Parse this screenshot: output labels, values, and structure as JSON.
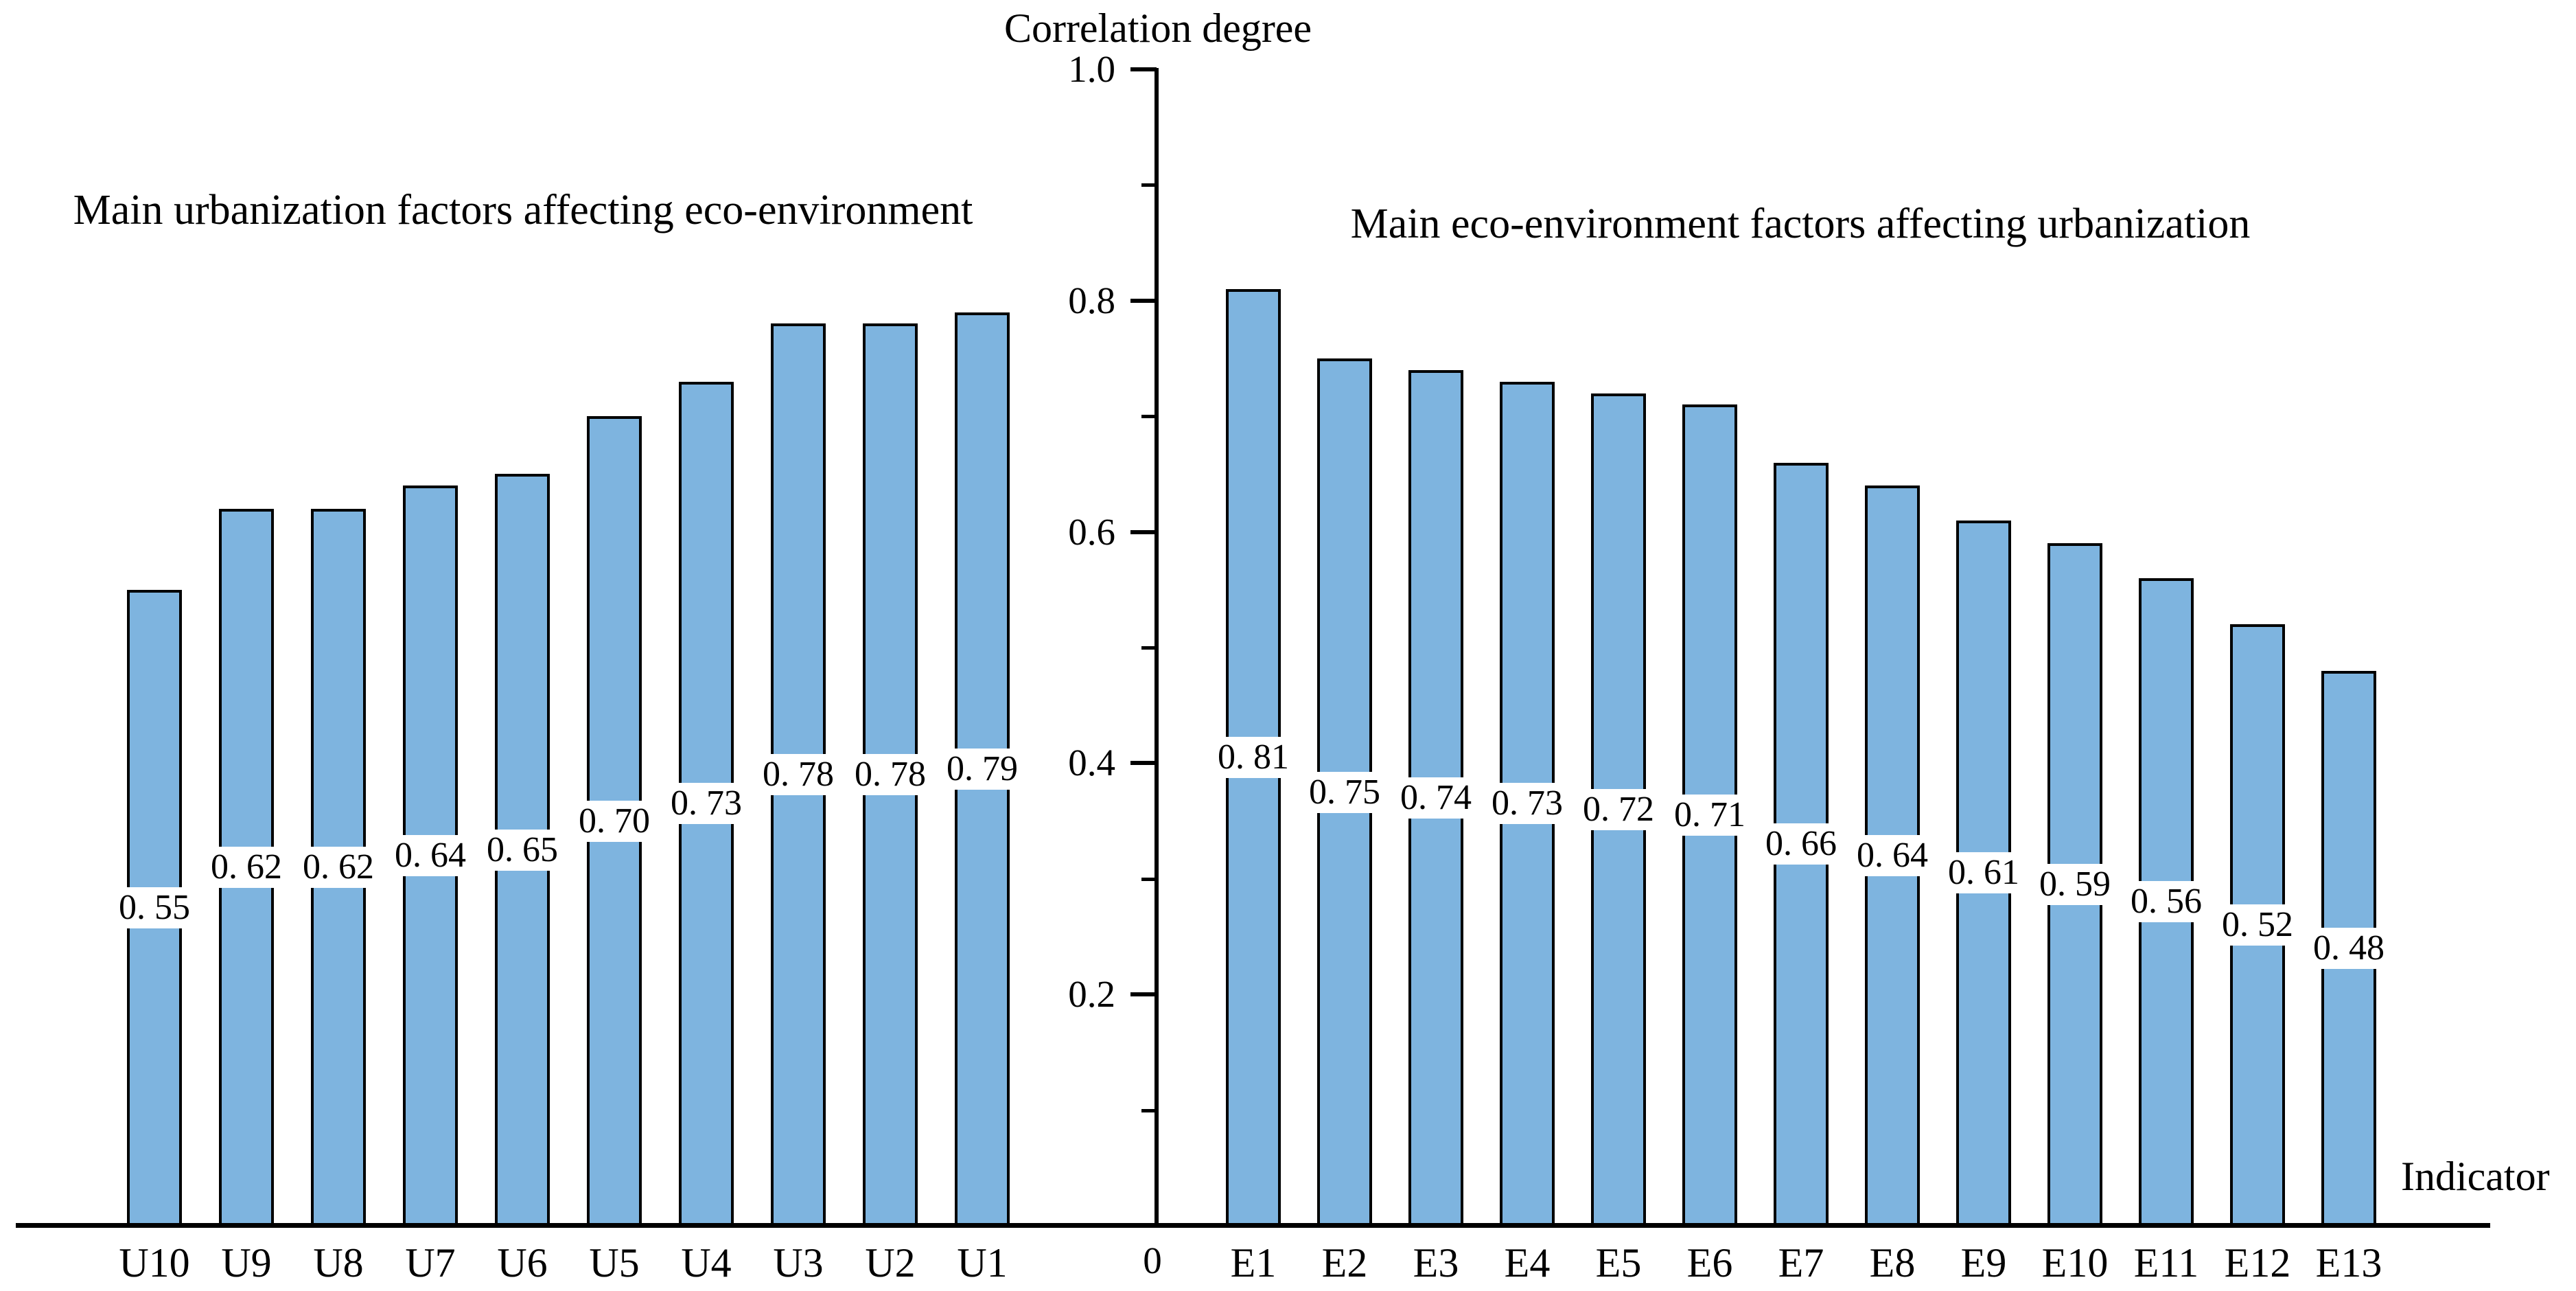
{
  "title": "Correlation degree",
  "panels": {
    "left_title": "Main urbanization factors affecting eco-environment",
    "right_title": "Main eco-environment factors affecting urbanization"
  },
  "axes": {
    "x_axis_label": "Indicator",
    "origin_label": "0",
    "y_major_tick_labels": [
      "0.2",
      "0.4",
      "0.6",
      "0.8",
      "1.0"
    ],
    "y_minor_tick_values": [
      0.1,
      0.3,
      0.5,
      0.7,
      0.9
    ]
  },
  "colors": {
    "bar_fill": "#7EB4DF",
    "bar_border": "#000000",
    "axis": "#000000",
    "label_box_bg": "#FFFFFF",
    "text": "#000000"
  },
  "chart_data": {
    "type": "bar",
    "title": "Correlation degree",
    "ylabel": "Correlation degree",
    "xlabel": "Indicator",
    "ylim": [
      0,
      1.0
    ],
    "grid": false,
    "legend_position": "none",
    "y_major_ticks": [
      0.2,
      0.4,
      0.6,
      0.8,
      1.0
    ],
    "y_minor_ticks": [
      0.1,
      0.3,
      0.5,
      0.7,
      0.9
    ],
    "groups": [
      {
        "name": "Main urbanization factors affecting eco-environment",
        "categories": [
          "U10",
          "U9",
          "U8",
          "U7",
          "U6",
          "U5",
          "U4",
          "U3",
          "U2",
          "U1"
        ],
        "values": [
          0.55,
          0.62,
          0.62,
          0.64,
          0.65,
          0.7,
          0.73,
          0.78,
          0.78,
          0.79
        ],
        "value_labels": [
          "0. 55",
          "0. 62",
          "0. 62",
          "0. 64",
          "0. 65",
          "0. 70",
          "0. 73",
          "0. 78",
          "0. 78",
          "0. 79"
        ]
      },
      {
        "name": "Main eco-environment factors affecting urbanization",
        "categories": [
          "E1",
          "E2",
          "E3",
          "E4",
          "E5",
          "E6",
          "E7",
          "E8",
          "E9",
          "E10",
          "E11",
          "E12",
          "E13"
        ],
        "values": [
          0.81,
          0.75,
          0.74,
          0.73,
          0.72,
          0.71,
          0.66,
          0.64,
          0.61,
          0.59,
          0.56,
          0.52,
          0.48
        ],
        "value_labels": [
          "0. 81",
          "0. 75",
          "0. 74",
          "0. 73",
          "0. 72",
          "0. 71",
          "0. 66",
          "0. 64",
          "0. 61",
          "0. 59",
          "0. 56",
          "0. 52",
          "0. 48"
        ]
      }
    ]
  }
}
